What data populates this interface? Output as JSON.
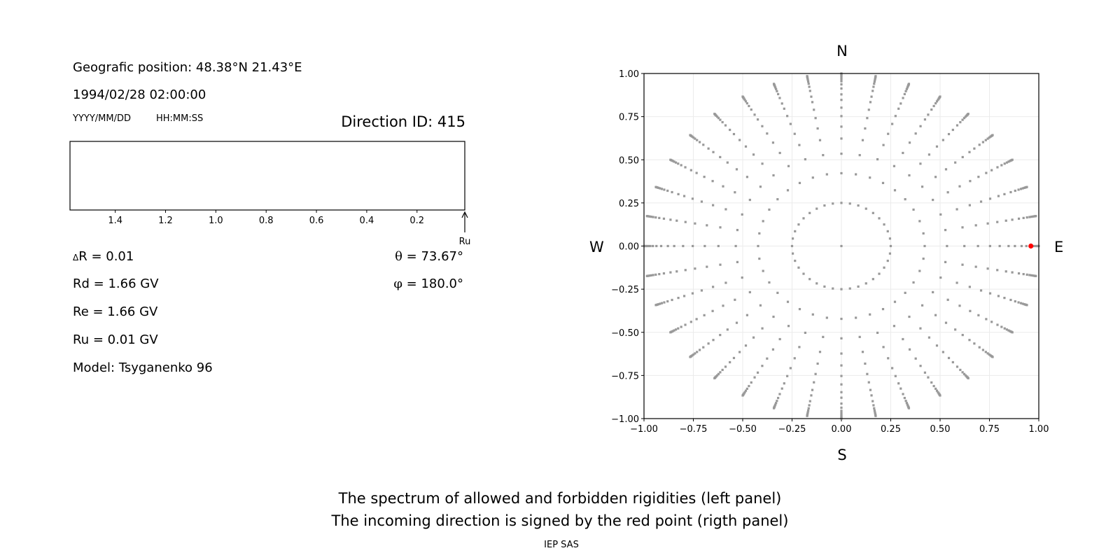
{
  "info": {
    "position": "Geografic position: 48.38°N 21.43°E",
    "datetime": "1994/02/28 02:00:00",
    "date_format": "YYYY/MM/DD",
    "time_format": "HH:MM:SS",
    "direction_id": "Direction ID: 415",
    "delta_r_symbol": "Δ",
    "delta_r": "R = 0.01",
    "rd": "Rd = 1.66 GV",
    "re": "Re = 1.66 GV",
    "ru": "Ru = 0.01 GV",
    "model": "Model: Tsyganenko 96",
    "theta_symbol": "θ",
    "theta": " = 73.67°",
    "phi_symbol": "φ",
    "phi": " = 180.0°"
  },
  "compass": {
    "north": "N",
    "south": "S",
    "west": "W",
    "east": "E"
  },
  "caption": {
    "line1": "The spectrum of allowed and forbidden rigidities (left panel)",
    "line2": "The incoming direction is signed by the red point (rigth panel)",
    "credit": "IEP SAS"
  },
  "chart_data": [
    {
      "type": "bar",
      "xlim": [
        1.58,
        0.01
      ],
      "x_inverted": true,
      "xticks": [
        1.4,
        1.2,
        1.0,
        0.8,
        0.6,
        0.4,
        0.2
      ],
      "xtick_labels": [
        "1.4",
        "1.2",
        "1.0",
        "0.8",
        "0.6",
        "0.4",
        "0.2"
      ],
      "values": [],
      "marker_label": "Ru",
      "marker_value": 0.01
    },
    {
      "type": "scatter",
      "xlim": [
        -1.0,
        1.0
      ],
      "ylim": [
        -1.0,
        1.0
      ],
      "grid": true,
      "xticks": [
        "-1.00",
        "-0.75",
        "-0.50",
        "-0.25",
        "0.00",
        "0.25",
        "0.50",
        "0.75",
        "1.00"
      ],
      "yticks": [
        "1.00",
        "0.75",
        "0.50",
        "0.25",
        "0.00",
        "-0.25",
        "-0.50",
        "-0.75",
        "-1.00"
      ],
      "azimuth_step_deg": 10,
      "radii": [
        0.25,
        0.422,
        0.535,
        0.623,
        0.692,
        0.753,
        0.802,
        0.847,
        0.879,
        0.913,
        0.937,
        0.955,
        0.968,
        0.978,
        0.986,
        0.992,
        0.996,
        1.0
      ],
      "center_point": true,
      "point_color": "#999999",
      "highlight": {
        "x": 0.96,
        "y": 0.0,
        "color": "#ff0000"
      }
    }
  ]
}
